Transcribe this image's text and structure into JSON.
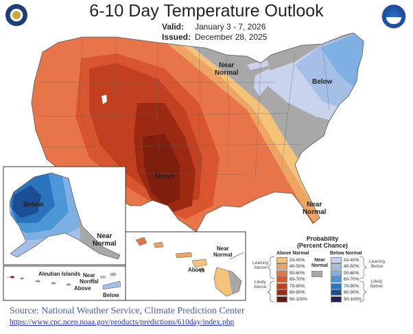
{
  "title": "6-10 Day Temperature Outlook",
  "valid": {
    "label": "Valid:",
    "value": "January 3 - 7, 2026"
  },
  "issued": {
    "label": "Issued:",
    "value": "December 28, 2025"
  },
  "map_labels": {
    "near_normal_ne": "Near\nNormal",
    "below_ne": "Below",
    "above_sw": "Above",
    "near_normal_fl": "Near\nNormal",
    "alaska_below": "Below",
    "alaska_near_normal": "Near\nNormal",
    "aleutian_title": "Aleutian Islands",
    "aleutian_near_normal": "Near\nNormal",
    "aleutian_above": "Above",
    "aleutian_below": "Below",
    "hawaii_near_normal": "Near\nNormal",
    "hawaii_above": "Above"
  },
  "legend": {
    "title": "Probability\n(Percent Chance)",
    "above_head": "Above Normal",
    "below_head": "Below Normal",
    "near_head": "Near\nNormal",
    "leaning_above": "Leaning\nAbove",
    "likely_above": "Likely\nAbove",
    "leaning_below": "Leaning\nBelow",
    "likely_below": "Likely\nBelow",
    "above": [
      {
        "label": "33-40%",
        "color": "#f5c27a"
      },
      {
        "label": "40-50%",
        "color": "#eea462"
      },
      {
        "label": "50-60%",
        "color": "#e8744a"
      },
      {
        "label": "60-70%",
        "color": "#d8552f"
      },
      {
        "label": "70-80%",
        "color": "#c0401f"
      },
      {
        "label": "80-90%",
        "color": "#9c2a12"
      },
      {
        "label": "90-100%",
        "color": "#6a1608"
      }
    ],
    "below": [
      {
        "label": "33-40%",
        "color": "#c9d3ee"
      },
      {
        "label": "40-50%",
        "color": "#a6bfe6"
      },
      {
        "label": "50-60%",
        "color": "#7fb0e4"
      },
      {
        "label": "60-70%",
        "color": "#4c97d6"
      },
      {
        "label": "70-80%",
        "color": "#2a74bd"
      },
      {
        "label": "80-90%",
        "color": "#1b4e94"
      },
      {
        "label": "90-100%",
        "color": "#1d1f5e"
      }
    ],
    "near_color": "#a8a8a8"
  },
  "source": "Source: National Weather Service, Climate Prediction Center",
  "url": "https://www.cpc.ncep.noaa.gov/products/predictions/610day/index.php"
}
